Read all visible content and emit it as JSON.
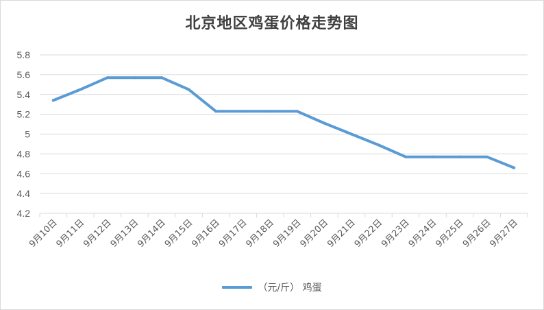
{
  "chart_data": {
    "type": "line",
    "title": "北京地区鸡蛋价格走势图",
    "categories": [
      "9月10日",
      "9月11日",
      "9月12日",
      "9月13日",
      "9月14日",
      "9月15日",
      "9月16日",
      "9月17日",
      "9月18日",
      "9月19日",
      "9月20日",
      "9月21日",
      "9月22日",
      "9月23日",
      "9月24日",
      "9月25日",
      "9月26日",
      "9月27日"
    ],
    "series": [
      {
        "name": "（元/斤） 鸡蛋",
        "values": [
          5.34,
          5.45,
          5.57,
          5.57,
          5.57,
          5.45,
          5.23,
          5.23,
          5.23,
          5.23,
          5.11,
          5.0,
          4.89,
          4.77,
          4.77,
          4.77,
          4.77,
          4.66
        ],
        "color": "#5b9bd5"
      }
    ],
    "yticks": [
      "4.2",
      "4.4",
      "4.6",
      "4.8",
      "5",
      "5.2",
      "5.4",
      "5.6",
      "5.8"
    ],
    "ylim": [
      4.2,
      5.8
    ],
    "grid": true,
    "legend_position": "bottom"
  }
}
